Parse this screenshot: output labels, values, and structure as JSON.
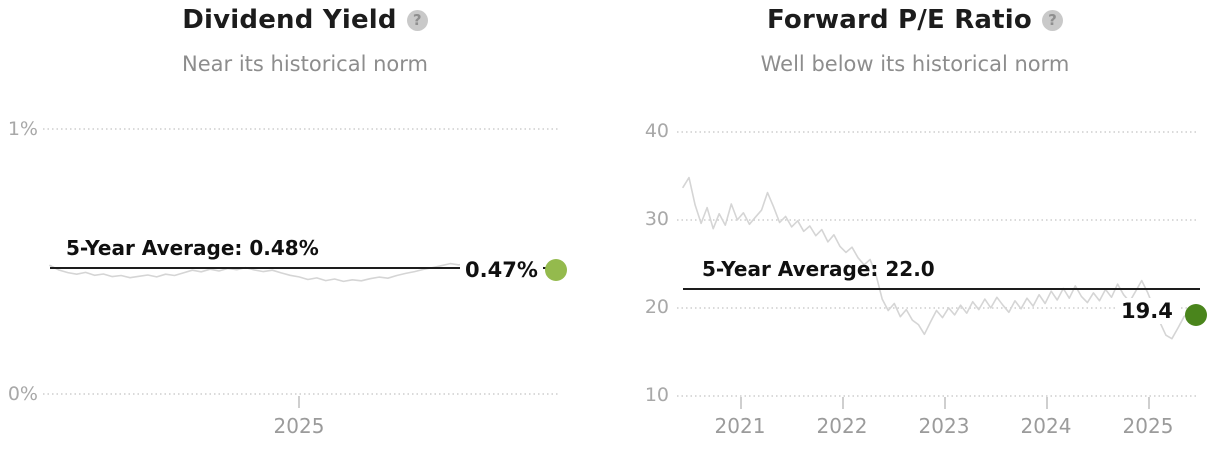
{
  "icons": {
    "help_glyph": "?"
  },
  "chart_data": [
    {
      "type": "line",
      "title": "Dividend Yield",
      "subtitle": "Near its historical norm",
      "average_label": "5-Year Average: 0.48%",
      "average_value": 0.48,
      "current_label": "0.47%",
      "current_value": 0.47,
      "series_color": "#d5d5d5",
      "dot_color": "#94ba4d",
      "grid": "dotted horizontal",
      "legend": "none",
      "y_axis": {
        "min": 0,
        "max": 1,
        "ticks": [
          "1%",
          "0%"
        ]
      },
      "x_axis": {
        "ticks": [
          "2025"
        ]
      },
      "values": [
        0.485,
        0.468,
        0.458,
        0.452,
        0.459,
        0.448,
        0.453,
        0.443,
        0.447,
        0.439,
        0.444,
        0.449,
        0.442,
        0.452,
        0.447,
        0.457,
        0.467,
        0.461,
        0.471,
        0.464,
        0.474,
        0.469,
        0.477,
        0.468,
        0.462,
        0.467,
        0.457,
        0.448,
        0.442,
        0.432,
        0.438,
        0.428,
        0.434,
        0.425,
        0.431,
        0.427,
        0.435,
        0.441,
        0.437,
        0.447,
        0.455,
        0.462,
        0.47,
        0.477,
        0.484,
        0.492,
        0.487,
        0.497,
        0.503,
        0.494,
        0.5,
        0.492,
        0.486,
        0.49,
        0.479,
        0.483,
        0.47
      ]
    },
    {
      "type": "line",
      "title": "Forward P/E Ratio",
      "subtitle": "Well below its historical norm",
      "average_label": "5-Year Average: 22.0",
      "average_value": 22.0,
      "current_label": "19.4",
      "current_value": 19.4,
      "series_color": "#d5d5d5",
      "dot_color": "#4a851c",
      "grid": "dotted horizontal",
      "legend": "none",
      "y_axis": {
        "min": 10,
        "max": 40,
        "ticks": [
          "40",
          "30",
          "20",
          "10"
        ]
      },
      "x_axis": {
        "ticks": [
          "2021",
          "2022",
          "2023",
          "2024",
          "2025"
        ]
      },
      "values": [
        33.6,
        34.7,
        31.6,
        29.5,
        31.3,
        28.9,
        30.6,
        29.3,
        31.7,
        29.9,
        30.7,
        29.4,
        30.2,
        31.0,
        33.0,
        31.4,
        29.6,
        30.3,
        29.1,
        29.8,
        28.6,
        29.2,
        28.1,
        28.8,
        27.4,
        28.2,
        26.9,
        26.2,
        26.8,
        25.6,
        24.8,
        25.4,
        23.6,
        20.9,
        19.6,
        20.4,
        18.9,
        19.7,
        18.5,
        18.0,
        16.9,
        18.3,
        19.6,
        18.8,
        19.9,
        19.1,
        20.2,
        19.3,
        20.6,
        19.7,
        20.9,
        19.9,
        21.1,
        20.2,
        19.4,
        20.7,
        19.8,
        21.0,
        20.1,
        21.4,
        20.4,
        21.8,
        20.8,
        22.1,
        21.0,
        22.4,
        21.2,
        20.5,
        21.6,
        20.7,
        22.0,
        21.1,
        22.6,
        21.4,
        20.6,
        21.8,
        23.0,
        21.6,
        19.9,
        18.3,
        16.8,
        16.4,
        17.6,
        18.9,
        19.4
      ]
    }
  ]
}
